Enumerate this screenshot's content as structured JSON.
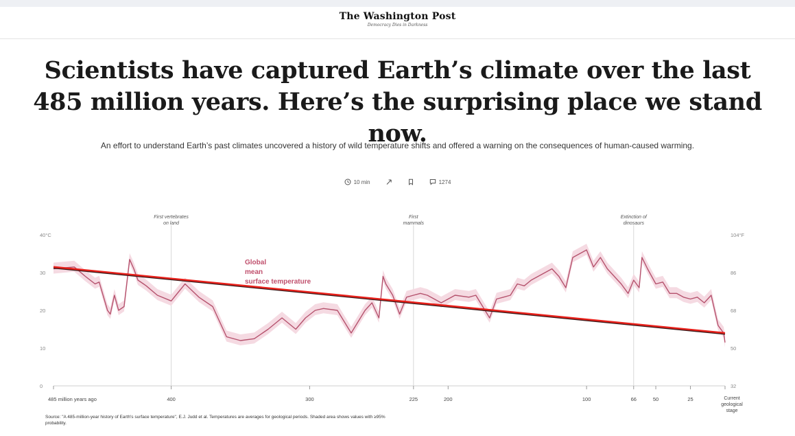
{
  "masthead": {
    "logo": "The Washington Post",
    "tagline": "Democracy Dies in Darkness"
  },
  "article": {
    "headline": "Scientists have captured Earth’s climate over the last 485 million years. Here’s the surprising place we stand now.",
    "dek": "An effort to understand Earth’s past climates uncovered a history of wild temperature shifts and offered a warning on the consequences of human-caused warming.",
    "read_time": "10 min",
    "comment_count": "1274",
    "source_note": "Source: \"A 485-million-year history of Earth's surface temperature\", E.J. Judd et al. Temperatures are averages for geological periods. Shaded area shows values with ≥95% probability."
  },
  "icons": {
    "clock": "clock-icon",
    "share": "share-icon",
    "bookmark": "bookmark-icon",
    "comment": "comment-icon"
  },
  "colors": {
    "series_line": "#b5526d",
    "uncertainty_band": "#f4d6df",
    "trend_line": "#e8201a",
    "annotation_text": "#c0506d",
    "grid": "#d8d8d8"
  },
  "chart_data": {
    "type": "line",
    "x_axis": {
      "unit": "million years ago",
      "reversed": true,
      "range": [
        485,
        0
      ],
      "ticks": [
        {
          "value": 485,
          "label": "485 million years ago"
        },
        {
          "value": 400,
          "label": "400"
        },
        {
          "value": 300,
          "label": "300"
        },
        {
          "value": 225,
          "label": "225"
        },
        {
          "value": 200,
          "label": "200"
        },
        {
          "value": 100,
          "label": "100"
        },
        {
          "value": 66,
          "label": "66"
        },
        {
          "value": 50,
          "label": "50"
        },
        {
          "value": 25,
          "label": "25"
        },
        {
          "value": 0,
          "label": "Current geological stage"
        }
      ]
    },
    "y_axis_left": {
      "unit": "°C",
      "range": [
        0,
        40
      ],
      "ticks": [
        {
          "value": 40,
          "label": "40°C"
        },
        {
          "value": 30,
          "label": "30"
        },
        {
          "value": 20,
          "label": "20"
        },
        {
          "value": 10,
          "label": "10"
        },
        {
          "value": 0,
          "label": "0"
        }
      ]
    },
    "y_axis_right": {
      "unit": "°F",
      "ticks": [
        {
          "value": 104,
          "label": "104°F"
        },
        {
          "value": 86,
          "label": "86"
        },
        {
          "value": 68,
          "label": "68"
        },
        {
          "value": 50,
          "label": "50"
        },
        {
          "value": 32,
          "label": "32"
        }
      ]
    },
    "events": [
      {
        "value": 400,
        "label": "First vertebrates on land"
      },
      {
        "value": 225,
        "label": "First mammals"
      },
      {
        "value": 66,
        "label": "Extinction of dinosaurs"
      }
    ],
    "series": [
      {
        "name": "Global mean surface temperature",
        "x": [
          485,
          470,
          462,
          455,
          452,
          446,
          444,
          441,
          438,
          434,
          430,
          427,
          424,
          420,
          418,
          410,
          400,
          390,
          380,
          370,
          360,
          350,
          340,
          330,
          320,
          310,
          303,
          296,
          290,
          280,
          270,
          260,
          255,
          250,
          247,
          245,
          240,
          235,
          230,
          225,
          220,
          215,
          205,
          195,
          185,
          180,
          170,
          165,
          160,
          155,
          150,
          145,
          140,
          135,
          130,
          125,
          120,
          115,
          110,
          100,
          95,
          90,
          85,
          80,
          75,
          70,
          66,
          62,
          60,
          56,
          50,
          45,
          40,
          35,
          30,
          25,
          20,
          15,
          10,
          5,
          3,
          1,
          0
        ],
        "y": [
          31,
          31.5,
          29,
          27,
          27.5,
          20,
          19,
          24,
          20,
          21,
          33.5,
          31,
          28,
          27,
          26.5,
          24,
          22.5,
          27,
          23.5,
          21,
          13,
          12,
          12.5,
          15,
          18,
          15,
          18,
          20,
          20.5,
          20,
          14,
          20,
          22,
          18,
          29,
          27,
          24,
          19,
          23.5,
          24,
          24.5,
          24,
          22,
          24,
          23.5,
          24,
          18,
          23,
          23.5,
          24,
          27,
          26.5,
          28,
          29,
          30,
          31,
          29,
          26,
          34,
          36,
          31.5,
          34,
          31,
          29,
          27,
          24.5,
          28,
          26,
          34,
          31,
          27,
          27.5,
          24.5,
          24.5,
          23.5,
          23,
          23.5,
          22,
          24,
          16,
          15,
          14,
          11.5
        ]
      }
    ],
    "series_label": "Global mean surface temperature",
    "trend_line": {
      "from": {
        "x": 485,
        "y": 31.5
      },
      "to": {
        "x": 0,
        "y": 14
      }
    },
    "grid": false,
    "legend": "inline label"
  }
}
